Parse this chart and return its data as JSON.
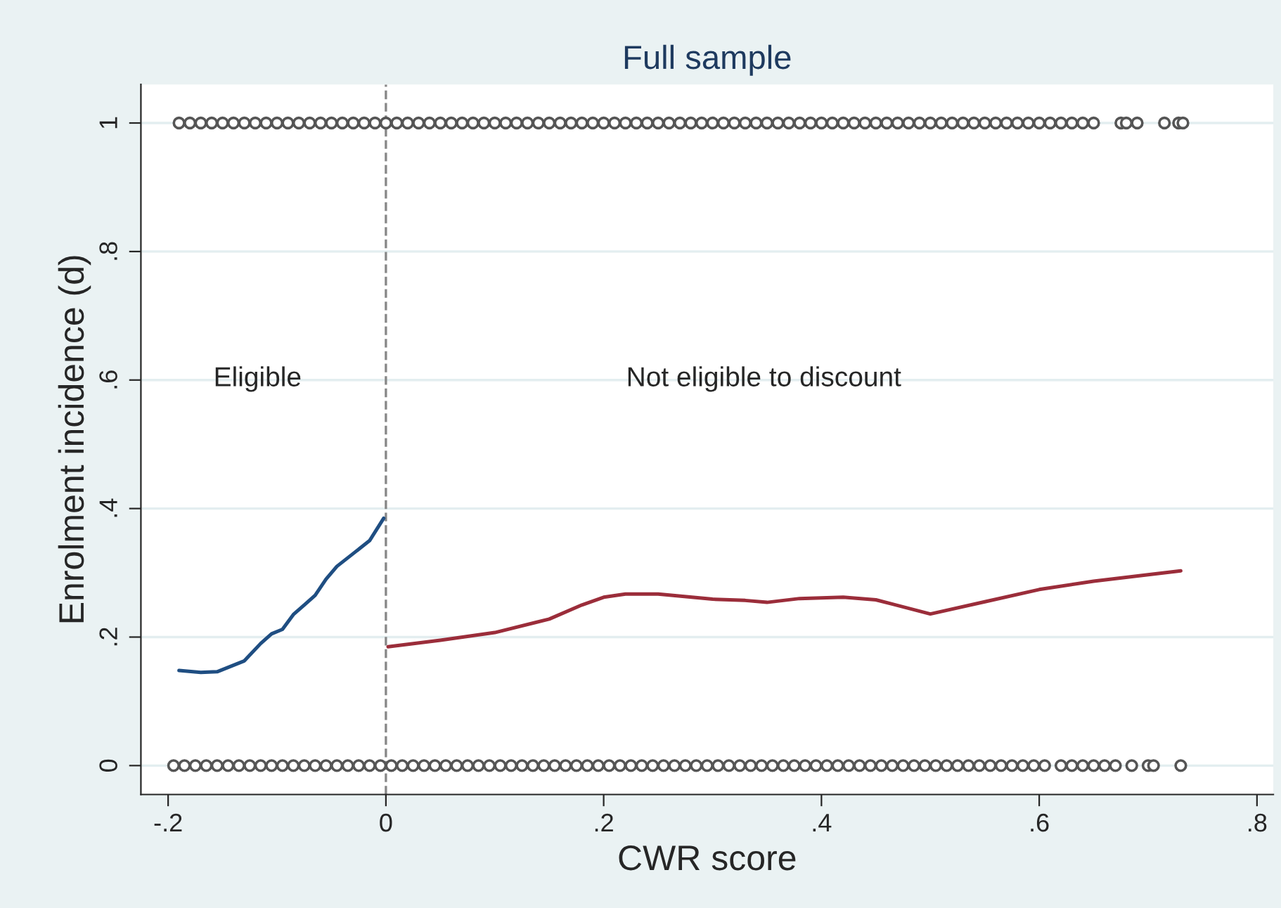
{
  "chart_data": {
    "type": "line",
    "title": "Full sample",
    "xlabel": "CWR score",
    "ylabel": "Enrolment incidence (d)",
    "xlim": [
      -0.225,
      0.815
    ],
    "ylim": [
      -0.045,
      1.06
    ],
    "xticks": [
      {
        "value": -0.2,
        "label": "-.2"
      },
      0,
      {
        "value": 0.2,
        "label": ".2"
      },
      {
        "value": 0.4,
        "label": ".4"
      },
      {
        "value": 0.6,
        "label": ".6"
      },
      {
        "value": 0.8,
        "label": ".8"
      }
    ],
    "yticks": [
      0,
      {
        "value": 0.2,
        "label": ".2"
      },
      {
        "value": 0.4,
        "label": ".4"
      },
      {
        "value": 0.6,
        "label": ".6"
      },
      {
        "value": 0.8,
        "label": ".8"
      },
      1
    ],
    "grid": "y",
    "legend": false,
    "ref_lines": [
      {
        "axis": "x",
        "value": 0,
        "color": "#888888",
        "line_style": "dashed"
      }
    ],
    "annotations": [
      "Eligible",
      "Not eligible to discount"
    ],
    "series": [
      {
        "type": "scatter",
        "marker": "circle",
        "color": "#555555",
        "x": [
          -0.19,
          -0.18,
          -0.17,
          -0.16,
          -0.15,
          -0.14,
          -0.13,
          -0.12,
          -0.11,
          -0.1,
          -0.09,
          -0.08,
          -0.07,
          -0.06,
          -0.05,
          -0.04,
          -0.03,
          -0.02,
          -0.01,
          0.0,
          0.01,
          0.02,
          0.03,
          0.04,
          0.05,
          0.06,
          0.07,
          0.08,
          0.09,
          0.1,
          0.11,
          0.12,
          0.13,
          0.14,
          0.15,
          0.16,
          0.17,
          0.18,
          0.19,
          0.2,
          0.21,
          0.22,
          0.23,
          0.24,
          0.25,
          0.26,
          0.27,
          0.28,
          0.29,
          0.3,
          0.31,
          0.32,
          0.33,
          0.34,
          0.35,
          0.36,
          0.37,
          0.38,
          0.39,
          0.4,
          0.41,
          0.42,
          0.43,
          0.44,
          0.45,
          0.46,
          0.47,
          0.48,
          0.49,
          0.5,
          0.51,
          0.52,
          0.53,
          0.54,
          0.55,
          0.56,
          0.57,
          0.58,
          0.59,
          0.6,
          0.61,
          0.62,
          0.63,
          0.64,
          0.65,
          0.675,
          0.68,
          0.69,
          0.715,
          0.728,
          0.732
        ],
        "values": [
          1,
          1,
          1,
          1,
          1,
          1,
          1,
          1,
          1,
          1,
          1,
          1,
          1,
          1,
          1,
          1,
          1,
          1,
          1,
          1,
          1,
          1,
          1,
          1,
          1,
          1,
          1,
          1,
          1,
          1,
          1,
          1,
          1,
          1,
          1,
          1,
          1,
          1,
          1,
          1,
          1,
          1,
          1,
          1,
          1,
          1,
          1,
          1,
          1,
          1,
          1,
          1,
          1,
          1,
          1,
          1,
          1,
          1,
          1,
          1,
          1,
          1,
          1,
          1,
          1,
          1,
          1,
          1,
          1,
          1,
          1,
          1,
          1,
          1,
          1,
          1,
          1,
          1,
          1,
          1,
          1,
          1,
          1,
          1,
          1,
          1,
          1,
          1,
          1,
          1,
          1
        ]
      },
      {
        "type": "scatter",
        "marker": "circle",
        "color": "#555555",
        "x": [
          -0.195,
          -0.185,
          -0.175,
          -0.165,
          -0.155,
          -0.145,
          -0.135,
          -0.125,
          -0.115,
          -0.105,
          -0.095,
          -0.085,
          -0.075,
          -0.065,
          -0.055,
          -0.045,
          -0.035,
          -0.025,
          -0.015,
          -0.005,
          0.005,
          0.015,
          0.025,
          0.035,
          0.045,
          0.055,
          0.065,
          0.075,
          0.085,
          0.095,
          0.105,
          0.115,
          0.125,
          0.135,
          0.145,
          0.155,
          0.165,
          0.175,
          0.185,
          0.195,
          0.205,
          0.215,
          0.225,
          0.235,
          0.245,
          0.255,
          0.265,
          0.275,
          0.285,
          0.295,
          0.305,
          0.315,
          0.325,
          0.335,
          0.345,
          0.355,
          0.365,
          0.375,
          0.385,
          0.395,
          0.405,
          0.415,
          0.425,
          0.435,
          0.445,
          0.455,
          0.465,
          0.475,
          0.485,
          0.495,
          0.505,
          0.515,
          0.525,
          0.535,
          0.545,
          0.555,
          0.565,
          0.575,
          0.585,
          0.595,
          0.605,
          0.62,
          0.63,
          0.64,
          0.65,
          0.66,
          0.67,
          0.685,
          0.7,
          0.705,
          0.73
        ],
        "values": [
          0,
          0,
          0,
          0,
          0,
          0,
          0,
          0,
          0,
          0,
          0,
          0,
          0,
          0,
          0,
          0,
          0,
          0,
          0,
          0,
          0,
          0,
          0,
          0,
          0,
          0,
          0,
          0,
          0,
          0,
          0,
          0,
          0,
          0,
          0,
          0,
          0,
          0,
          0,
          0,
          0,
          0,
          0,
          0,
          0,
          0,
          0,
          0,
          0,
          0,
          0,
          0,
          0,
          0,
          0,
          0,
          0,
          0,
          0,
          0,
          0,
          0,
          0,
          0,
          0,
          0,
          0,
          0,
          0,
          0,
          0,
          0,
          0,
          0,
          0,
          0,
          0,
          0,
          0,
          0,
          0,
          0,
          0,
          0,
          0,
          0,
          0,
          0,
          0,
          0,
          0
        ]
      },
      {
        "color": "#1f4e82",
        "x": [
          -0.19,
          -0.17,
          -0.155,
          -0.13,
          -0.115,
          -0.105,
          -0.095,
          -0.085,
          -0.075,
          -0.065,
          -0.055,
          -0.045,
          -0.03,
          -0.015,
          -0.002
        ],
        "values": [
          0.148,
          0.145,
          0.146,
          0.163,
          0.19,
          0.205,
          0.212,
          0.235,
          0.25,
          0.265,
          0.29,
          0.31,
          0.33,
          0.35,
          0.385
        ]
      },
      {
        "color": "#9b2d3a",
        "x": [
          0.002,
          0.05,
          0.1,
          0.15,
          0.18,
          0.2,
          0.22,
          0.25,
          0.3,
          0.33,
          0.35,
          0.38,
          0.42,
          0.45,
          0.5,
          0.55,
          0.6,
          0.65,
          0.7,
          0.73
        ],
        "values": [
          0.185,
          0.195,
          0.207,
          0.228,
          0.25,
          0.262,
          0.267,
          0.267,
          0.259,
          0.257,
          0.254,
          0.26,
          0.262,
          0.258,
          0.236,
          0.255,
          0.274,
          0.287,
          0.297,
          0.303
        ]
      }
    ]
  }
}
